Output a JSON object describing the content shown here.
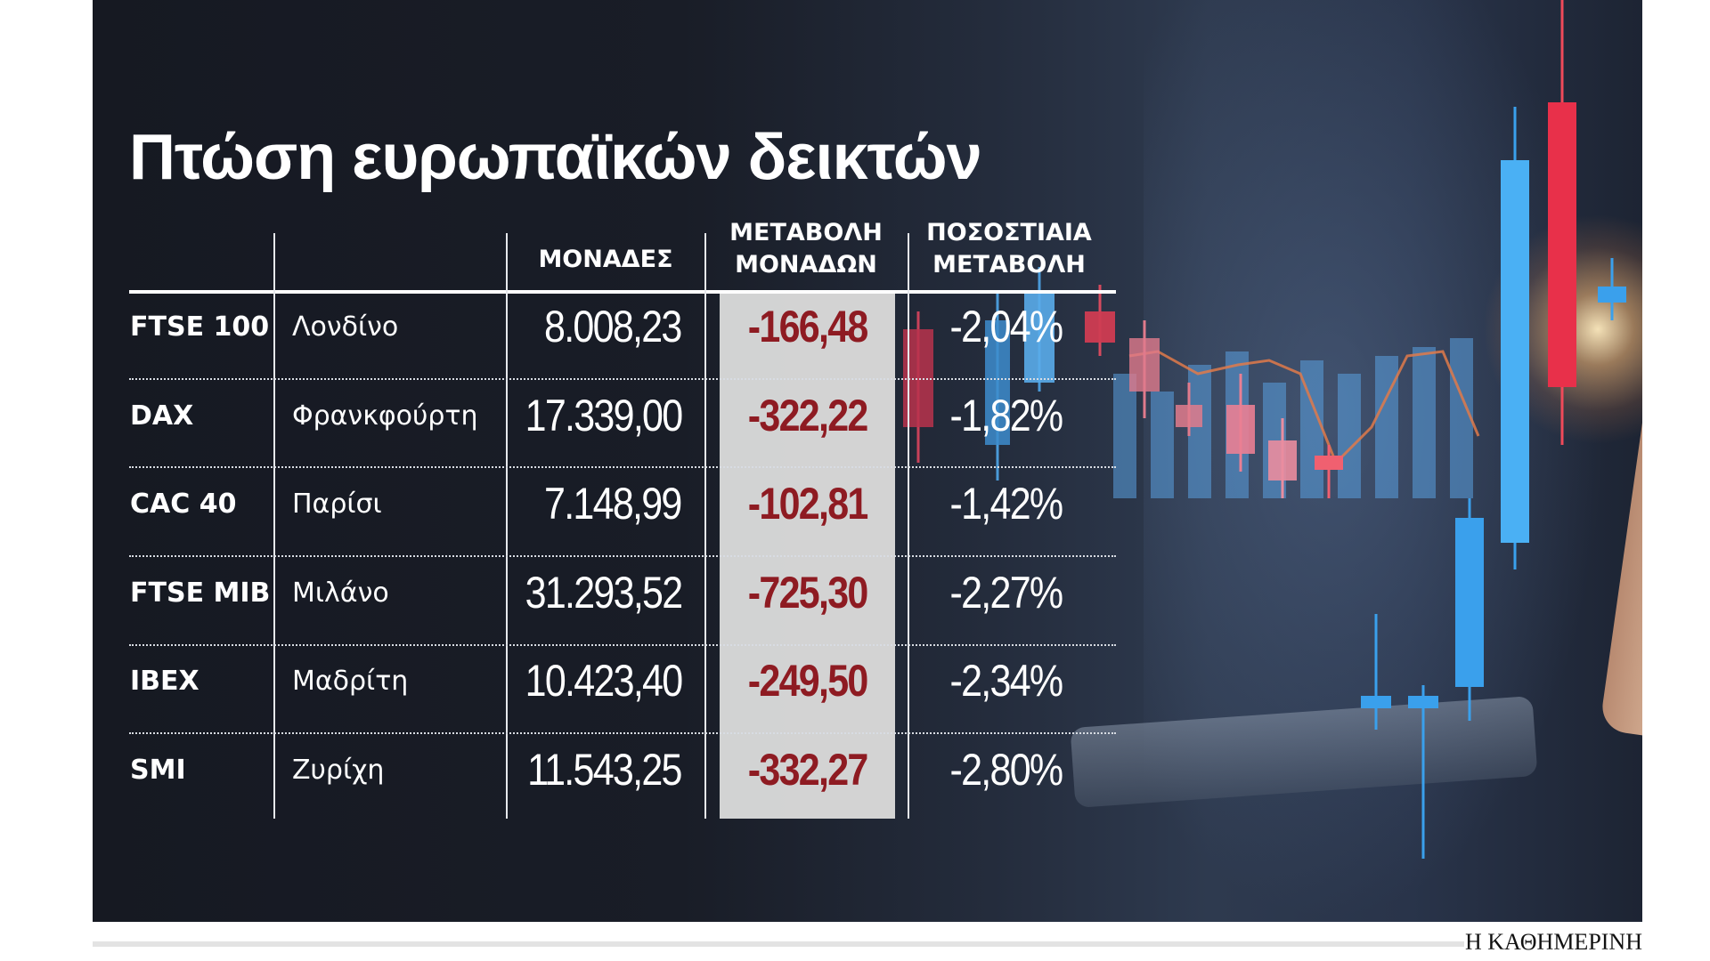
{
  "chart_data": {
    "type": "table",
    "title": "Πτώση ευρωπαϊκών δεικτών",
    "columns": [
      "",
      "",
      "ΜΟΝΑΔΕΣ",
      "ΜΕΤΑΒΟΛΗ ΜΟΝΑΔΩΝ",
      "ΠΟΣΟΣΤΙΑΙΑ ΜΕΤΑΒΟΛΗ"
    ],
    "header": {
      "points": "ΜΟΝΑΔΕΣ",
      "change_line1": "ΜΕΤΑΒΟΛΗ",
      "change_line2": "ΜΟΝΑΔΩΝ",
      "pct_line1": "ΠΟΣΟΣΤΙΑΙΑ",
      "pct_line2": "ΜΕΤΑΒΟΛΗ"
    },
    "rows": [
      {
        "index": "FTSE 100",
        "city": "Λονδίνο",
        "points": "8.008,23",
        "change": "-166,48",
        "pct": "-2,04%"
      },
      {
        "index": "DAX",
        "city": "Φρανκφούρτη",
        "points": "17.339,00",
        "change": "-322,22",
        "pct": "-1,82%"
      },
      {
        "index": "CAC 40",
        "city": "Παρίσι",
        "points": "7.148,99",
        "change": "-102,81",
        "pct": "-1,42%"
      },
      {
        "index": "FTSE MIB",
        "city": "Μιλάνο",
        "points": "31.293,52",
        "change": "-725,30",
        "pct": "-2,27%"
      },
      {
        "index": "IBEX",
        "city": "Μαδρίτη",
        "points": "10.423,40",
        "change": "-249,50",
        "pct": "-2,34%"
      },
      {
        "index": "SMI",
        "city": "Ζυρίχη",
        "points": "11.543,25",
        "change": "-332,27",
        "pct": "-2,80%"
      }
    ],
    "colors": {
      "negative_change": "#8e1b22",
      "change_column_bg": "#d9d9d9"
    }
  },
  "brand": "Η ΚΑΘΗΜΕΡΙΝΗ"
}
